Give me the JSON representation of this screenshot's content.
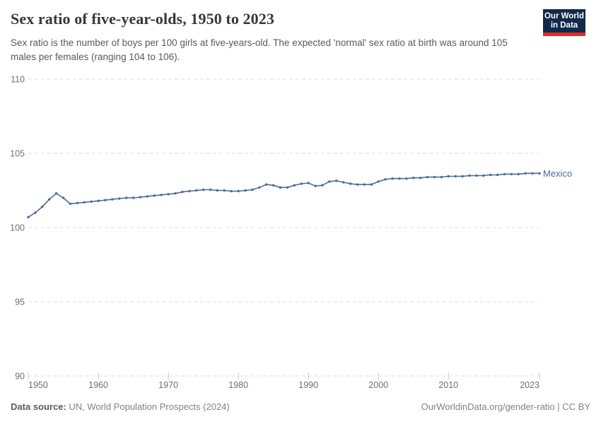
{
  "header": {
    "title": "Sex ratio of five-year-olds, 1950 to 2023",
    "subtitle": "Sex ratio is the number of boys per 100 girls at five-years-old. The expected 'normal' sex ratio at birth was around 105 males per females (ranging 104 to 106).",
    "logo": {
      "line1": "Our World",
      "line2": "in Data",
      "bg_color": "#12294B",
      "accent_color": "#E02B28",
      "text_color": "#FFFFFF"
    }
  },
  "chart_data": {
    "type": "line",
    "title": "Sex ratio of five-year-olds, 1950 to 2023",
    "xlabel": "",
    "ylabel": "",
    "xlim": [
      1950,
      2023
    ],
    "ylim": [
      90,
      110
    ],
    "yticks": [
      110,
      105,
      100,
      95,
      90
    ],
    "xticks": [
      1950,
      1960,
      1970,
      1980,
      1990,
      2000,
      2010,
      2023
    ],
    "grid": "horizontal-dashed",
    "legend": "end-of-line-label",
    "x": [
      1950,
      1951,
      1952,
      1953,
      1954,
      1955,
      1956,
      1957,
      1958,
      1959,
      1960,
      1961,
      1962,
      1963,
      1964,
      1965,
      1966,
      1967,
      1968,
      1969,
      1970,
      1971,
      1972,
      1973,
      1974,
      1975,
      1976,
      1977,
      1978,
      1979,
      1980,
      1981,
      1982,
      1983,
      1984,
      1985,
      1986,
      1987,
      1988,
      1989,
      1990,
      1991,
      1992,
      1993,
      1994,
      1995,
      1996,
      1997,
      1998,
      1999,
      2000,
      2001,
      2002,
      2003,
      2004,
      2005,
      2006,
      2007,
      2008,
      2009,
      2010,
      2011,
      2012,
      2013,
      2014,
      2015,
      2016,
      2017,
      2018,
      2019,
      2020,
      2021,
      2022,
      2023
    ],
    "series": [
      {
        "name": "Mexico",
        "end_label": "Mexico",
        "color": "#4C6A9C",
        "values": [
          100.7,
          101.0,
          101.4,
          101.9,
          102.3,
          102.0,
          101.6,
          101.65,
          101.7,
          101.75,
          101.8,
          101.85,
          101.9,
          101.95,
          102.0,
          102.0,
          102.05,
          102.1,
          102.15,
          102.2,
          102.25,
          102.3,
          102.4,
          102.45,
          102.5,
          102.55,
          102.55,
          102.5,
          102.5,
          102.45,
          102.45,
          102.5,
          102.55,
          102.7,
          102.9,
          102.85,
          102.7,
          102.7,
          102.85,
          102.95,
          103.0,
          102.8,
          102.85,
          103.1,
          103.15,
          103.05,
          102.95,
          102.9,
          102.9,
          102.9,
          103.1,
          103.25,
          103.3,
          103.3,
          103.3,
          103.35,
          103.35,
          103.4,
          103.4,
          103.4,
          103.45,
          103.45,
          103.45,
          103.5,
          103.5,
          103.5,
          103.55,
          103.55,
          103.6,
          103.6,
          103.6,
          103.65,
          103.65,
          103.65
        ]
      }
    ]
  },
  "footer": {
    "source_label": "Data source:",
    "source_value": " UN, World Population Prospects (2024)",
    "credit": "OurWorldinData.org/gender-ratio | CC BY"
  }
}
